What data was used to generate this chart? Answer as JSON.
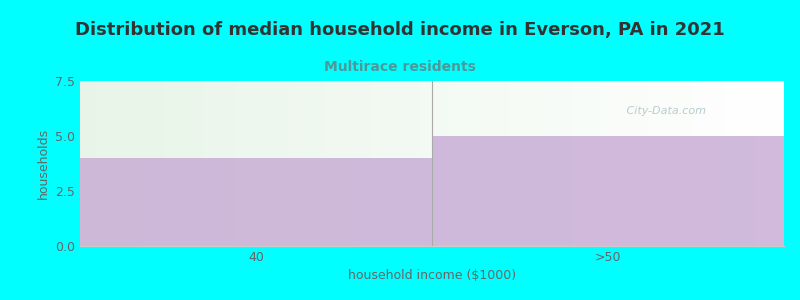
{
  "title": "Distribution of median household income in Everson, PA in 2021",
  "subtitle": "Multirace residents",
  "xlabel": "household income ($1000)",
  "ylabel": "households",
  "categories": [
    "40",
    ">50"
  ],
  "values": [
    4.0,
    5.0
  ],
  "ylim": [
    0,
    7.5
  ],
  "yticks": [
    0,
    2.5,
    5,
    7.5
  ],
  "bar_color": "#c9aed6",
  "bg_color": "#00ffff",
  "plot_bg_color": "#ffffff",
  "green_area_color": "#e8f5e9",
  "title_color": "#333333",
  "subtitle_color": "#4d9999",
  "axis_label_color": "#666666",
  "tick_color": "#666666",
  "watermark_text": " City-Data.com",
  "watermark_color": "#b0c8c8",
  "title_fontsize": 13,
  "subtitle_fontsize": 10,
  "label_fontsize": 9,
  "tick_fontsize": 9
}
